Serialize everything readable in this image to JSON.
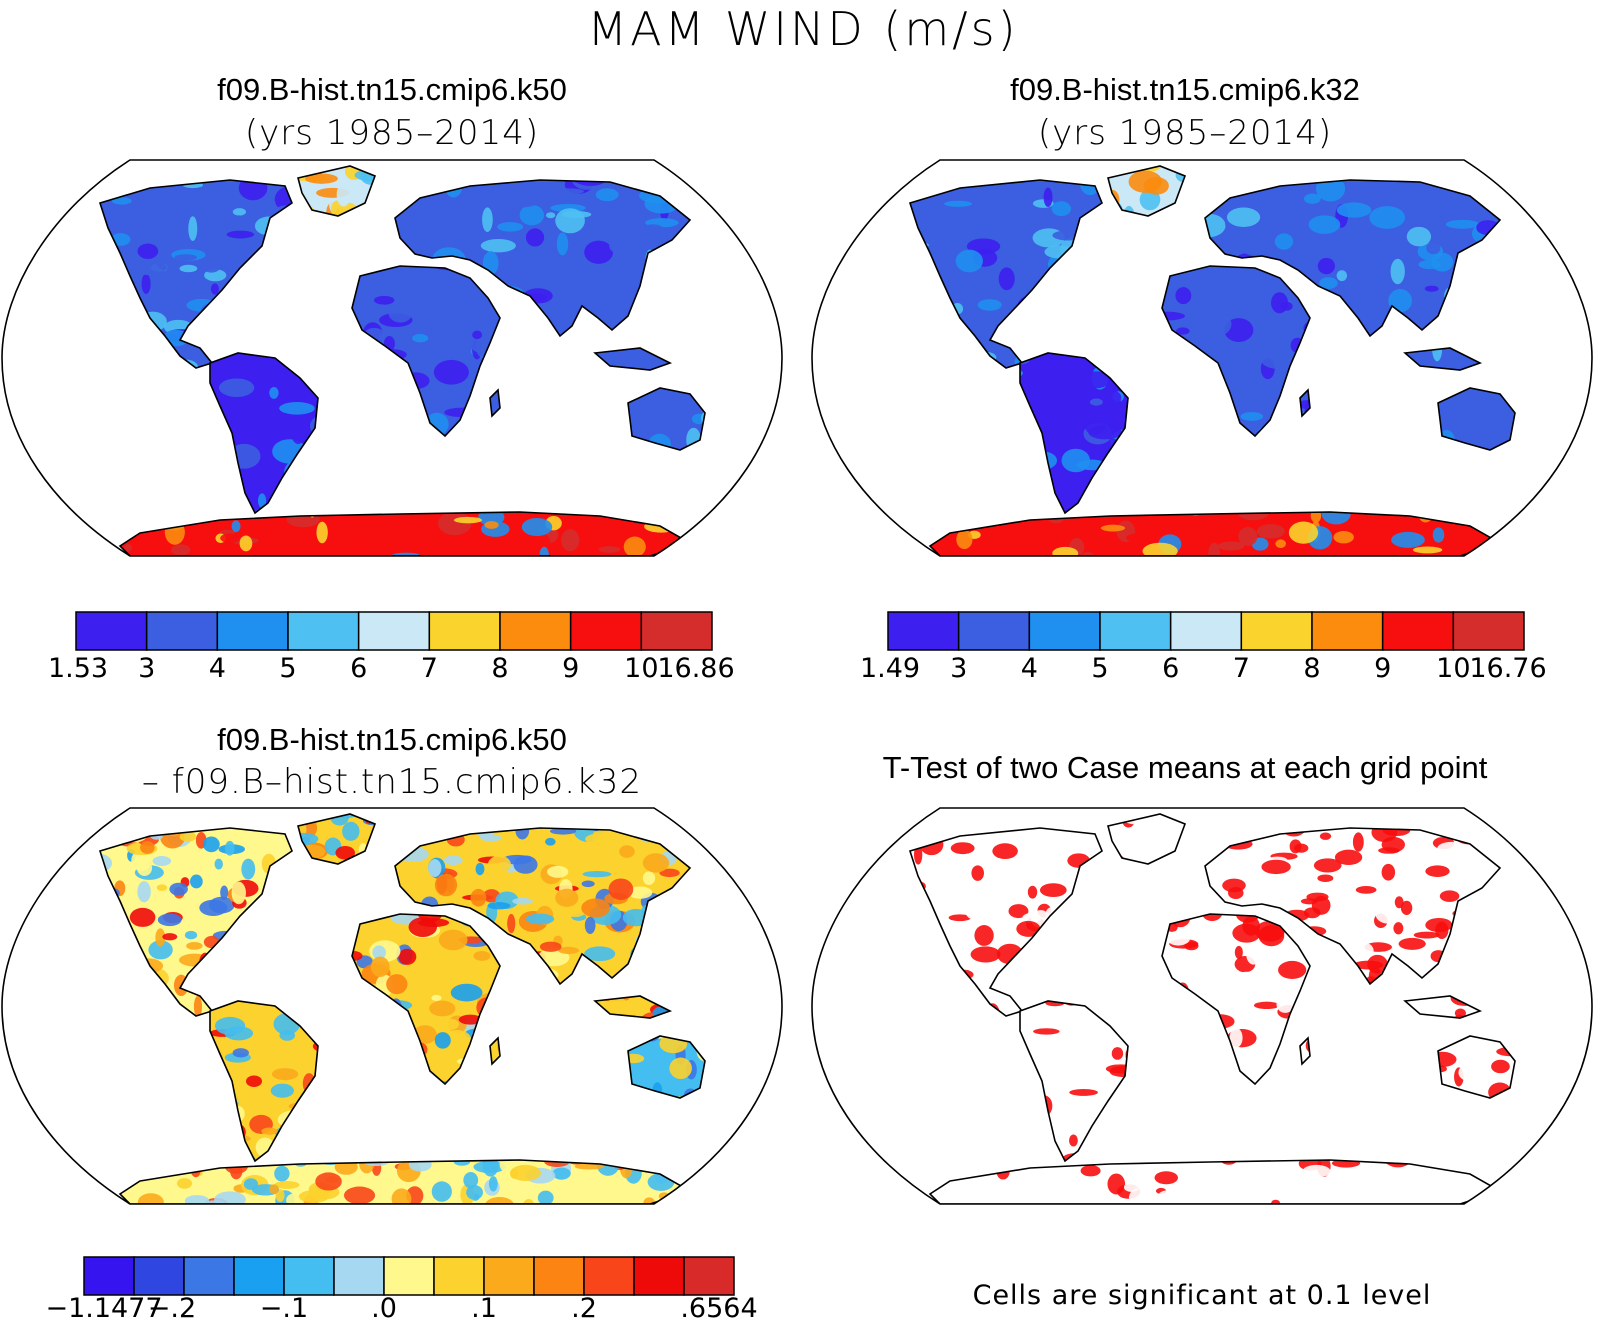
{
  "title": "MAM WIND (m/s)",
  "panels": [
    {
      "id": "k50",
      "title": "f09.B-hist.tn15.cmip6.k50",
      "subtitle": "(yrs 1985–2014)",
      "colorbar": {
        "labels": [
          "1.53",
          "3",
          "4",
          "5",
          "6",
          "7",
          "8",
          "9",
          "10",
          "16.86"
        ],
        "colors": [
          "#3d1ff0",
          "#3c5ee0",
          "#1f8ff0",
          "#4ec0f2",
          "#cbe8f6",
          "#fbd32d",
          "#fb8c0e",
          "#f70e0e",
          "#d52c2c"
        ]
      }
    },
    {
      "id": "k32",
      "title": "f09.B-hist.tn15.cmip6.k32",
      "subtitle": "(yrs 1985–2014)",
      "colorbar": {
        "labels": [
          "1.49",
          "3",
          "4",
          "5",
          "6",
          "7",
          "8",
          "9",
          "10",
          "16.76"
        ],
        "colors": [
          "#3d1ff0",
          "#3c5ee0",
          "#1f8ff0",
          "#4ec0f2",
          "#cbe8f6",
          "#fbd32d",
          "#fb8c0e",
          "#f70e0e",
          "#d52c2c"
        ]
      }
    },
    {
      "id": "diff",
      "title": "f09.B-hist.tn15.cmip6.k50",
      "subtitle": "– f09.B–hist.tn15.cmip6.k32",
      "colorbar": {
        "labels": [
          "−1.1477",
          "−.2",
          "−.1",
          ".0",
          ".1",
          ".2",
          ".6564"
        ],
        "colors": [
          "#3514ef",
          "#2f47e0",
          "#3c77e6",
          "#1aa0f0",
          "#44bdf0",
          "#a6d8f2",
          "#fff88c",
          "#fcd22e",
          "#fbaa1c",
          "#fb8412",
          "#f8461a",
          "#ef0a0a",
          "#d92a2a"
        ]
      }
    },
    {
      "id": "ttest",
      "title": "T-Test of two Case means at each grid point",
      "footnote": "Cells are significant at 0.1 level"
    }
  ],
  "icons": [
    "world-map-robinson"
  ]
}
